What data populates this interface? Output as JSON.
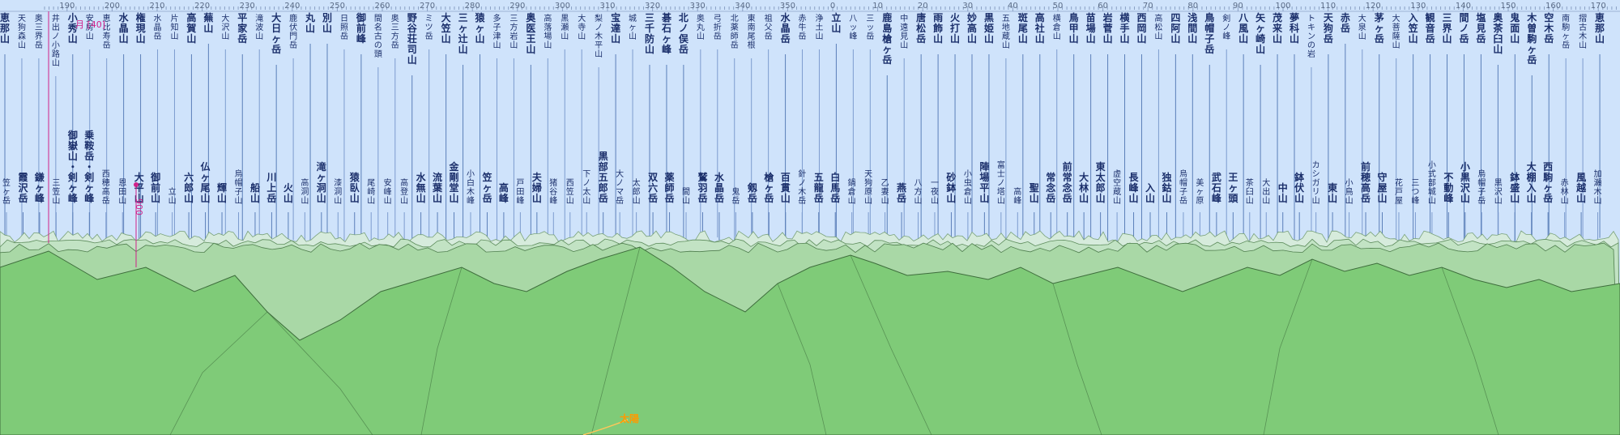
{
  "panorama": {
    "scale_start_deg": 185,
    "scale_step_deg": 10,
    "scale_labels": [
      "190",
      "200",
      "210",
      "220",
      "230",
      "240",
      "250",
      "260",
      "270",
      "280",
      "290",
      "300",
      "310",
      "320",
      "330",
      "340",
      "350",
      "0",
      "10",
      "20",
      "30",
      "40",
      "50",
      "60",
      "70",
      "80",
      "90",
      "100",
      "110",
      "120",
      "130",
      "140",
      "150",
      "160",
      "170"
    ],
    "moon_marker": "月 [40]",
    "highlight_label": "900",
    "sun_label": "太陽",
    "colors": {
      "sky": "#cfe3fb",
      "ridge_far": "#d6ebdc",
      "ridge_mid": "#a9d8a6",
      "ridge_near": "#7fcb78",
      "ridge_stroke": "#3e6d3c",
      "marker": "#d0208a",
      "sun": "#ff9a00"
    },
    "peaks_top": [
      {
        "name": "恵那山",
        "major": true
      },
      {
        "name": "天狗森山",
        "major": false
      },
      {
        "name": "奥三界岳",
        "major": false
      },
      {
        "name": "井出ノ小路山",
        "major": false
      },
      {
        "name": "小秀山",
        "major": true
      },
      {
        "name": "安房山",
        "major": false
      },
      {
        "name": "恵比寿岳",
        "major": false
      },
      {
        "name": "水晶山",
        "major": true
      },
      {
        "name": "権現山",
        "major": true
      },
      {
        "name": "水晶岳",
        "major": false
      },
      {
        "name": "片知山",
        "major": false
      },
      {
        "name": "高賀山",
        "major": true
      },
      {
        "name": "蕪山",
        "major": true
      },
      {
        "name": "大沢山",
        "major": false
      },
      {
        "name": "平家岳",
        "major": true
      },
      {
        "name": "滝波山",
        "major": false
      },
      {
        "name": "大日ヶ岳",
        "major": true
      },
      {
        "name": "鹿伏門岳",
        "major": false
      },
      {
        "name": "丸山",
        "major": true
      },
      {
        "name": "別山",
        "major": true
      },
      {
        "name": "日照岳",
        "major": false
      },
      {
        "name": "御前峰",
        "major": true
      },
      {
        "name": "間名古の頭",
        "major": false
      },
      {
        "name": "奥三方岳",
        "major": false
      },
      {
        "name": "野谷荘司山",
        "major": true
      },
      {
        "name": "ミツ岳",
        "major": false
      },
      {
        "name": "大笠山",
        "major": true
      },
      {
        "name": "三ヶ辻山",
        "major": true
      },
      {
        "name": "猿ヶ山",
        "major": true
      },
      {
        "name": "多子津山",
        "major": false
      },
      {
        "name": "三方岩山",
        "major": false
      },
      {
        "name": "奥医王山",
        "major": true
      },
      {
        "name": "高落場山",
        "major": false
      },
      {
        "name": "黒瀬山",
        "major": false
      },
      {
        "name": "大寺山",
        "major": false
      },
      {
        "name": "梨ノ木平山",
        "major": false
      },
      {
        "name": "宝達山",
        "major": true
      },
      {
        "name": "城ヶ山",
        "major": false
      },
      {
        "name": "三千防山",
        "major": true
      },
      {
        "name": "碁石ヶ峰",
        "major": true
      },
      {
        "name": "北ノ俣岳",
        "major": true
      },
      {
        "name": "奥丸山",
        "major": false
      },
      {
        "name": "弓折岳",
        "major": false
      },
      {
        "name": "北薬師岳",
        "major": false
      },
      {
        "name": "東南尾根",
        "major": false
      },
      {
        "name": "祖父岳",
        "major": false
      },
      {
        "name": "水晶岳",
        "major": true
      },
      {
        "name": "赤牛岳",
        "major": false
      },
      {
        "name": "浄土山",
        "major": false
      },
      {
        "name": "立山",
        "major": true
      },
      {
        "name": "八ッ峰",
        "major": false
      },
      {
        "name": "三ッ岳",
        "major": false
      },
      {
        "name": "鹿島槍ヶ岳",
        "major": true
      },
      {
        "name": "中遠見山",
        "major": false
      },
      {
        "name": "唐松岳",
        "major": true
      },
      {
        "name": "雨飾山",
        "major": true
      },
      {
        "name": "火打山",
        "major": true
      },
      {
        "name": "妙高山",
        "major": true
      },
      {
        "name": "黒姫山",
        "major": true
      },
      {
        "name": "五地蔵山",
        "major": false
      },
      {
        "name": "斑尾山",
        "major": true
      },
      {
        "name": "高社山",
        "major": true
      },
      {
        "name": "横倉山",
        "major": false
      },
      {
        "name": "鳥甲山",
        "major": true
      },
      {
        "name": "苗場山",
        "major": true
      },
      {
        "name": "岩菅山",
        "major": true
      },
      {
        "name": "横手山",
        "major": true
      },
      {
        "name": "西岡山",
        "major": true
      },
      {
        "name": "高松山",
        "major": false
      },
      {
        "name": "四阿山",
        "major": true
      },
      {
        "name": "浅間山",
        "major": true
      },
      {
        "name": "鳥帽子岳",
        "major": true
      },
      {
        "name": "剣ノ峰",
        "major": false
      },
      {
        "name": "八風山",
        "major": true
      },
      {
        "name": "矢ヶ崎山",
        "major": true
      },
      {
        "name": "茂来山",
        "major": true
      },
      {
        "name": "夢科山",
        "major": true
      },
      {
        "name": "トキンの岩",
        "major": false
      },
      {
        "name": "天狗岳",
        "major": true
      },
      {
        "name": "赤岳",
        "major": true
      },
      {
        "name": "大泉山",
        "major": false
      },
      {
        "name": "茅ヶ岳",
        "major": true
      },
      {
        "name": "大菩薩山",
        "major": false
      },
      {
        "name": "入笠山",
        "major": true
      },
      {
        "name": "観音岳",
        "major": true
      },
      {
        "name": "三界山",
        "major": true
      },
      {
        "name": "間ノ岳",
        "major": true
      },
      {
        "name": "塩見岳",
        "major": true
      },
      {
        "name": "奥茶臼山",
        "major": true
      },
      {
        "name": "鬼面山",
        "major": true
      },
      {
        "name": "木曽駒ヶ岳",
        "major": true
      },
      {
        "name": "空木岳",
        "major": true
      },
      {
        "name": "南駒ヶ岳",
        "major": false
      },
      {
        "name": "摺古木山",
        "major": false
      },
      {
        "name": "恵那山",
        "major": true
      }
    ],
    "peaks_bottom": [
      {
        "name": "笠ヶ岳",
        "major": false
      },
      {
        "name": "霞沢岳",
        "major": true
      },
      {
        "name": "鎌ヶ峰",
        "major": true
      },
      {
        "name": "三笠山",
        "major": false
      },
      {
        "name": "御嶽山・剣ヶ峰",
        "major": true
      },
      {
        "name": "乗鞍岳・剣ヶ峰",
        "major": true
      },
      {
        "name": "西穂高岳",
        "major": false
      },
      {
        "name": "恩田山",
        "major": false
      },
      {
        "name": "大平山",
        "major": true
      },
      {
        "name": "御前山",
        "major": true
      },
      {
        "name": "立山",
        "major": false
      },
      {
        "name": "六郎山",
        "major": true
      },
      {
        "name": "仏ヶ尾山",
        "major": true
      },
      {
        "name": "輝山",
        "major": true
      },
      {
        "name": "烏帽子山",
        "major": false
      },
      {
        "name": "船山",
        "major": true
      },
      {
        "name": "川上岳",
        "major": true
      },
      {
        "name": "火山",
        "major": true
      },
      {
        "name": "高洞山",
        "major": false
      },
      {
        "name": "滝ヶ洞山",
        "major": true
      },
      {
        "name": "漆洞山",
        "major": false
      },
      {
        "name": "猿臥山",
        "major": true
      },
      {
        "name": "尾崎山",
        "major": false
      },
      {
        "name": "安峰山",
        "major": false
      },
      {
        "name": "高登山",
        "major": false
      },
      {
        "name": "水無山",
        "major": true
      },
      {
        "name": "流葉山",
        "major": true
      },
      {
        "name": "金剛堂山",
        "major": true
      },
      {
        "name": "小白木峰",
        "major": false
      },
      {
        "name": "笠ヶ岳",
        "major": true
      },
      {
        "name": "高峰",
        "major": true
      },
      {
        "name": "戸田峰",
        "major": false
      },
      {
        "name": "夫婦山",
        "major": true
      },
      {
        "name": "猪谷峰",
        "major": false
      },
      {
        "name": "西笠山",
        "major": false
      },
      {
        "name": "下ノ太山",
        "major": false
      },
      {
        "name": "黒部五郎岳",
        "major": true
      },
      {
        "name": "大ノマ岳",
        "major": false
      },
      {
        "name": "太郎山",
        "major": false
      },
      {
        "name": "双六岳",
        "major": true
      },
      {
        "name": "薬師岳",
        "major": true
      },
      {
        "name": "間山",
        "major": false
      },
      {
        "name": "鷲羽岳",
        "major": true
      },
      {
        "name": "水晶岳",
        "major": true
      },
      {
        "name": "鬼岳",
        "major": false
      },
      {
        "name": "剱岳",
        "major": true
      },
      {
        "name": "槍ヶ岳",
        "major": true
      },
      {
        "name": "百貫山",
        "major": true
      },
      {
        "name": "針ノ木岳",
        "major": false
      },
      {
        "name": "五龍岳",
        "major": true
      },
      {
        "name": "白馬岳",
        "major": true
      },
      {
        "name": "鍋倉山",
        "major": false
      },
      {
        "name": "天狗原山",
        "major": false
      },
      {
        "name": "乙妻山",
        "major": false
      },
      {
        "name": "燕岳",
        "major": true
      },
      {
        "name": "八方山",
        "major": false
      },
      {
        "name": "一夜山",
        "major": false
      },
      {
        "name": "砂鉢山",
        "major": true
      },
      {
        "name": "小虫倉山",
        "major": false
      },
      {
        "name": "陣場平山",
        "major": true
      },
      {
        "name": "富士ノ塔山",
        "major": false
      },
      {
        "name": "高峰",
        "major": false
      },
      {
        "name": "聖山",
        "major": true
      },
      {
        "name": "常念岳",
        "major": true
      },
      {
        "name": "前常念岳",
        "major": true
      },
      {
        "name": "大林山",
        "major": true
      },
      {
        "name": "東太郎山",
        "major": true
      },
      {
        "name": "虚空蔵山",
        "major": false
      },
      {
        "name": "長峰山",
        "major": true
      },
      {
        "name": "入山",
        "major": true
      },
      {
        "name": "独鈷山",
        "major": true
      },
      {
        "name": "烏帽子岳",
        "major": false
      },
      {
        "name": "美ヶ原",
        "major": false
      },
      {
        "name": "武石峰",
        "major": true
      },
      {
        "name": "王ヶ頭",
        "major": true
      },
      {
        "name": "茶臼山",
        "major": false
      },
      {
        "name": "大出山",
        "major": false
      },
      {
        "name": "中山",
        "major": true
      },
      {
        "name": "鉢伏山",
        "major": true
      },
      {
        "name": "カシガリ山",
        "major": false
      },
      {
        "name": "東山",
        "major": true
      },
      {
        "name": "小鳥山",
        "major": false
      },
      {
        "name": "前穂高岳",
        "major": true
      },
      {
        "name": "守屋山",
        "major": true
      },
      {
        "name": "花戸屋",
        "major": false
      },
      {
        "name": "三つ峰",
        "major": false
      },
      {
        "name": "小式部城山",
        "major": false
      },
      {
        "name": "不動峰",
        "major": true
      },
      {
        "name": "小黒沢山",
        "major": true
      },
      {
        "name": "烏帽子岳",
        "major": false
      },
      {
        "name": "黒沢山",
        "major": false
      },
      {
        "name": "鉢盛山",
        "major": true
      },
      {
        "name": "大棚入山",
        "major": true
      },
      {
        "name": "西駒ヶ岳",
        "major": true
      },
      {
        "name": "赤林山",
        "major": false
      },
      {
        "name": "風越山",
        "major": true
      },
      {
        "name": "加瀬木山",
        "major": false
      }
    ]
  }
}
